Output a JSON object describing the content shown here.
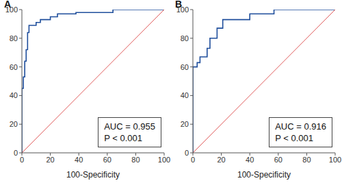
{
  "chart_data": [
    {
      "type": "line",
      "title": "A",
      "x_label": "100-Specificity",
      "xlim": [
        0,
        100
      ],
      "ylim": [
        0,
        100
      ],
      "xticks": [
        0,
        20,
        40,
        60,
        80,
        100
      ],
      "yticks": [
        0,
        20,
        40,
        60,
        80,
        100
      ],
      "annotations": [
        "AUC = 0.955",
        "P < 0.001"
      ],
      "series": [
        {
          "color": "#1f4e9c",
          "line_style": "solid",
          "x": [
            0,
            0,
            1,
            1,
            2,
            2,
            3,
            3,
            4,
            4,
            5,
            5,
            10,
            10,
            13,
            13,
            20,
            20,
            25,
            25,
            38,
            38,
            64,
            64,
            100
          ],
          "values": [
            0,
            45,
            45,
            53,
            53,
            64,
            64,
            72,
            72,
            84,
            84,
            89,
            89,
            91,
            91,
            93,
            93,
            95,
            95,
            97,
            97,
            98,
            98,
            100,
            100
          ]
        },
        {
          "color": "#e05a5a",
          "line_style": "solid",
          "x": [
            0,
            100
          ],
          "values": [
            0,
            100
          ]
        }
      ]
    },
    {
      "type": "line",
      "title": "B",
      "x_label": "100-Specificity",
      "xlim": [
        0,
        100
      ],
      "ylim": [
        0,
        100
      ],
      "xticks": [
        0,
        20,
        40,
        60,
        80,
        100
      ],
      "yticks": [
        0,
        20,
        40,
        60,
        80,
        100
      ],
      "annotations": [
        "AUC = 0.916",
        "P < 0.001"
      ],
      "series": [
        {
          "color": "#1f4e9c",
          "line_style": "solid",
          "x": [
            0,
            0,
            3,
            3,
            5,
            5,
            10,
            10,
            12,
            12,
            17,
            17,
            21,
            21,
            40,
            40,
            57,
            57,
            100
          ],
          "values": [
            0,
            60,
            60,
            63,
            63,
            67,
            67,
            73,
            73,
            80,
            80,
            87,
            87,
            93,
            93,
            97,
            97,
            100,
            100
          ]
        },
        {
          "color": "#e05a5a",
          "line_style": "solid",
          "x": [
            0,
            100
          ],
          "values": [
            0,
            100
          ]
        }
      ]
    }
  ]
}
